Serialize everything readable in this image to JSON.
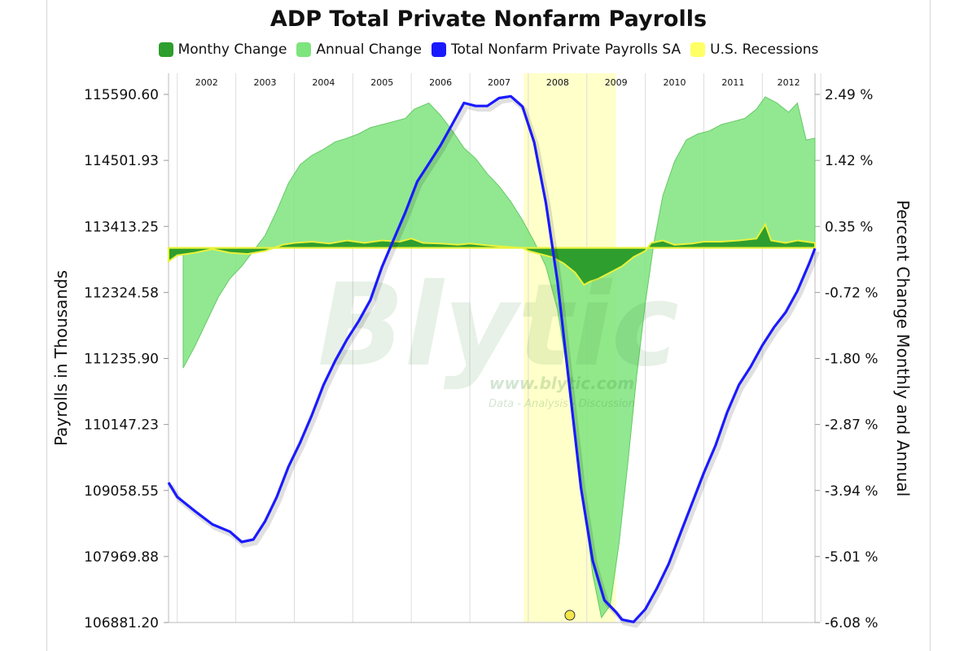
{
  "chart_data": {
    "type": "area",
    "title": "ADP Total Private Nonfarm Payrolls",
    "ylabel": "Payrolls in Thousands",
    "y2label": "Percent Change Monthly and Annual",
    "ylim": [
      106881.2,
      115590.6
    ],
    "y2lim": [
      -6.08,
      2.49
    ],
    "y_ticks": [
      "115590.60",
      "114501.93",
      "113413.25",
      "112324.58",
      "111235.90",
      "110147.23",
      "109058.55",
      "107969.88",
      "106881.20"
    ],
    "y2_ticks": [
      "2.49 %",
      "1.42 %",
      "0.35 %",
      "-0.72 %",
      "-1.80 %",
      "-2.87 %",
      "-3.94 %",
      "-5.01 %",
      "-6.08 %"
    ],
    "x_categories": [
      "2002",
      "2003",
      "2004",
      "2005",
      "2006",
      "2007",
      "2008",
      "2009",
      "2010",
      "2011",
      "2012"
    ],
    "x_start": 2001.85,
    "x_end": 2012.9,
    "recession": {
      "start": 2007.92,
      "end": 2009.5
    },
    "series": [
      {
        "name": "Monthy Change",
        "color": "#2e9e2e",
        "axis": "right",
        "points": [
          [
            2001.85,
            -0.22
          ],
          [
            2002.0,
            -0.12
          ],
          [
            2002.3,
            -0.08
          ],
          [
            2002.6,
            -0.02
          ],
          [
            2002.9,
            -0.08
          ],
          [
            2003.2,
            -0.1
          ],
          [
            2003.5,
            -0.05
          ],
          [
            2003.8,
            0.05
          ],
          [
            2004.0,
            0.08
          ],
          [
            2004.3,
            0.1
          ],
          [
            2004.6,
            0.07
          ],
          [
            2004.9,
            0.12
          ],
          [
            2005.2,
            0.08
          ],
          [
            2005.5,
            0.12
          ],
          [
            2005.8,
            0.1
          ],
          [
            2006.0,
            0.15
          ],
          [
            2006.2,
            0.08
          ],
          [
            2006.5,
            0.07
          ],
          [
            2006.8,
            0.05
          ],
          [
            2007.0,
            0.07
          ],
          [
            2007.3,
            0.04
          ],
          [
            2007.6,
            0.02
          ],
          [
            2007.9,
            0.0
          ],
          [
            2008.0,
            -0.05
          ],
          [
            2008.2,
            -0.1
          ],
          [
            2008.4,
            -0.15
          ],
          [
            2008.6,
            -0.25
          ],
          [
            2008.8,
            -0.4
          ],
          [
            2008.95,
            -0.6
          ],
          [
            2009.05,
            -0.55
          ],
          [
            2009.2,
            -0.5
          ],
          [
            2009.4,
            -0.4
          ],
          [
            2009.6,
            -0.3
          ],
          [
            2009.8,
            -0.15
          ],
          [
            2010.0,
            -0.05
          ],
          [
            2010.1,
            0.08
          ],
          [
            2010.3,
            0.12
          ],
          [
            2010.5,
            0.05
          ],
          [
            2010.8,
            0.07
          ],
          [
            2011.0,
            0.1
          ],
          [
            2011.3,
            0.1
          ],
          [
            2011.6,
            0.12
          ],
          [
            2011.9,
            0.15
          ],
          [
            2012.05,
            0.38
          ],
          [
            2012.15,
            0.12
          ],
          [
            2012.4,
            0.08
          ],
          [
            2012.6,
            0.12
          ],
          [
            2012.75,
            0.1
          ],
          [
            2012.9,
            0.08
          ]
        ]
      },
      {
        "name": "Annual Change",
        "color": "#7ee47e",
        "axis": "right",
        "points": [
          [
            2002.1,
            -1.95
          ],
          [
            2002.3,
            -1.6
          ],
          [
            2002.5,
            -1.2
          ],
          [
            2002.7,
            -0.8
          ],
          [
            2002.9,
            -0.5
          ],
          [
            2003.1,
            -0.3
          ],
          [
            2003.3,
            -0.05
          ],
          [
            2003.5,
            0.2
          ],
          [
            2003.7,
            0.6
          ],
          [
            2003.9,
            1.05
          ],
          [
            2004.1,
            1.35
          ],
          [
            2004.3,
            1.5
          ],
          [
            2004.5,
            1.6
          ],
          [
            2004.7,
            1.72
          ],
          [
            2004.9,
            1.78
          ],
          [
            2005.1,
            1.85
          ],
          [
            2005.3,
            1.95
          ],
          [
            2005.5,
            2.0
          ],
          [
            2005.7,
            2.05
          ],
          [
            2005.9,
            2.1
          ],
          [
            2006.05,
            2.25
          ],
          [
            2006.3,
            2.35
          ],
          [
            2006.5,
            2.15
          ],
          [
            2006.7,
            1.9
          ],
          [
            2006.9,
            1.62
          ],
          [
            2007.1,
            1.45
          ],
          [
            2007.3,
            1.2
          ],
          [
            2007.5,
            1.0
          ],
          [
            2007.7,
            0.75
          ],
          [
            2007.9,
            0.45
          ],
          [
            2008.1,
            0.1
          ],
          [
            2008.3,
            -0.3
          ],
          [
            2008.5,
            -1.0
          ],
          [
            2008.7,
            -2.2
          ],
          [
            2008.9,
            -3.8
          ],
          [
            2009.1,
            -5.3
          ],
          [
            2009.25,
            -6.0
          ],
          [
            2009.4,
            -5.8
          ],
          [
            2009.55,
            -4.8
          ],
          [
            2009.7,
            -3.5
          ],
          [
            2009.85,
            -2.1
          ],
          [
            2010.0,
            -0.9
          ],
          [
            2010.15,
            0.1
          ],
          [
            2010.3,
            0.85
          ],
          [
            2010.5,
            1.4
          ],
          [
            2010.7,
            1.75
          ],
          [
            2010.9,
            1.85
          ],
          [
            2011.1,
            1.9
          ],
          [
            2011.3,
            2.0
          ],
          [
            2011.5,
            2.05
          ],
          [
            2011.7,
            2.1
          ],
          [
            2011.9,
            2.25
          ],
          [
            2012.05,
            2.45
          ],
          [
            2012.25,
            2.35
          ],
          [
            2012.45,
            2.2
          ],
          [
            2012.6,
            2.35
          ],
          [
            2012.75,
            1.75
          ],
          [
            2012.9,
            1.78
          ]
        ]
      },
      {
        "name": "Total Nonfarm Private Payrolls SA",
        "color": "#1a1aff",
        "axis": "left",
        "points": [
          [
            2001.85,
            109190
          ],
          [
            2002.0,
            108950
          ],
          [
            2002.3,
            108720
          ],
          [
            2002.6,
            108500
          ],
          [
            2002.9,
            108380
          ],
          [
            2003.1,
            108210
          ],
          [
            2003.3,
            108250
          ],
          [
            2003.5,
            108550
          ],
          [
            2003.7,
            108950
          ],
          [
            2003.9,
            109450
          ],
          [
            2004.1,
            109850
          ],
          [
            2004.3,
            110300
          ],
          [
            2004.5,
            110800
          ],
          [
            2004.7,
            111200
          ],
          [
            2004.9,
            111550
          ],
          [
            2005.1,
            111850
          ],
          [
            2005.3,
            112200
          ],
          [
            2005.5,
            112750
          ],
          [
            2005.7,
            113200
          ],
          [
            2005.9,
            113650
          ],
          [
            2006.1,
            114150
          ],
          [
            2006.3,
            114450
          ],
          [
            2006.5,
            114750
          ],
          [
            2006.7,
            115100
          ],
          [
            2006.9,
            115450
          ],
          [
            2007.1,
            115400
          ],
          [
            2007.3,
            115400
          ],
          [
            2007.5,
            115530
          ],
          [
            2007.7,
            115560
          ],
          [
            2007.9,
            115390
          ],
          [
            2008.1,
            114800
          ],
          [
            2008.3,
            113800
          ],
          [
            2008.5,
            112500
          ],
          [
            2008.7,
            110800
          ],
          [
            2008.9,
            109100
          ],
          [
            2009.1,
            107900
          ],
          [
            2009.3,
            107250
          ],
          [
            2009.5,
            107050
          ],
          [
            2009.6,
            106930
          ],
          [
            2009.8,
            106890
          ],
          [
            2010.0,
            107100
          ],
          [
            2010.2,
            107450
          ],
          [
            2010.4,
            107850
          ],
          [
            2010.6,
            108350
          ],
          [
            2010.8,
            108850
          ],
          [
            2011.0,
            109350
          ],
          [
            2011.2,
            109800
          ],
          [
            2011.4,
            110350
          ],
          [
            2011.6,
            110800
          ],
          [
            2011.8,
            111100
          ],
          [
            2012.0,
            111450
          ],
          [
            2012.2,
            111750
          ],
          [
            2012.4,
            112000
          ],
          [
            2012.6,
            112350
          ],
          [
            2012.8,
            112800
          ],
          [
            2012.9,
            113050
          ]
        ]
      },
      {
        "name": "U.S. Recessions",
        "color": "#ffff66",
        "axis": "right"
      }
    ]
  },
  "watermark": {
    "brand": "Blytic",
    "url": "www.blytic.com",
    "tagline": "Data - Analysis - Discussion"
  }
}
